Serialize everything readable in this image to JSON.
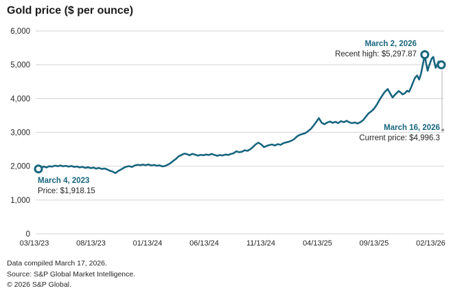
{
  "title": "Gold price ($ per ounce)",
  "colors": {
    "line": "#17657E",
    "accent_text": "#17657E",
    "text": "#231F20",
    "grid": "#D9D9D9",
    "leader": "#C7C7C7",
    "leader_dot": "#9B9B9B",
    "background": "#FFFFFF"
  },
  "annotations": {
    "start": {
      "date": "March 4, 2023",
      "line": "Price: $1,918.15"
    },
    "high": {
      "date": "March 2, 2026",
      "line": "Recent high: $5,297.87"
    },
    "current": {
      "date": "March 16, 2026",
      "line": "Current price: $4,996.3"
    }
  },
  "footer": {
    "compiled": "Data compiled March 17, 2026.",
    "source": "Source: S&P Global Market Intelligence.",
    "copyright": "© 2026 S&P Global."
  },
  "chart_data": {
    "type": "line",
    "title": "Gold price ($ per ounce)",
    "ylim": [
      0,
      6000
    ],
    "grid": "horizontal",
    "y_ticks": [
      {
        "v": 0,
        "label": "0"
      },
      {
        "v": 1000,
        "label": "1,000"
      },
      {
        "v": 2000,
        "label": "2,000"
      },
      {
        "v": 3000,
        "label": "3,000"
      },
      {
        "v": 4000,
        "label": "4,000"
      },
      {
        "v": 5000,
        "label": "5,000"
      },
      {
        "v": 6000,
        "label": "6,000"
      }
    ],
    "x_ticks": [
      "03/13/23",
      "08/13/23",
      "01/13/24",
      "06/13/24",
      "11/13/24",
      "04/13/25",
      "09/13/25",
      "02/13/26"
    ],
    "markers": [
      {
        "name": "start",
        "t": 0.0,
        "v": 1918.15
      },
      {
        "name": "recent-high",
        "t": 0.959,
        "v": 5297.87
      },
      {
        "name": "current",
        "t": 1.0,
        "v": 4996.3
      }
    ],
    "series": [
      {
        "name": "Gold price",
        "points": [
          [
            0.0,
            1918.15
          ],
          [
            0.007,
            1968
          ],
          [
            0.014,
            1990
          ],
          [
            0.02,
            1962
          ],
          [
            0.027,
            2000
          ],
          [
            0.034,
            1988
          ],
          [
            0.041,
            2015
          ],
          [
            0.048,
            2000
          ],
          [
            0.055,
            2022
          ],
          [
            0.061,
            1996
          ],
          [
            0.068,
            2012
          ],
          [
            0.075,
            1988
          ],
          [
            0.082,
            2006
          ],
          [
            0.089,
            1978
          ],
          [
            0.096,
            1992
          ],
          [
            0.102,
            1962
          ],
          [
            0.109,
            1982
          ],
          [
            0.116,
            1948
          ],
          [
            0.123,
            1968
          ],
          [
            0.13,
            1942
          ],
          [
            0.137,
            1958
          ],
          [
            0.143,
            1928
          ],
          [
            0.15,
            1948
          ],
          [
            0.157,
            1918
          ],
          [
            0.164,
            1932
          ],
          [
            0.171,
            1902
          ],
          [
            0.177,
            1868
          ],
          [
            0.184,
            1840
          ],
          [
            0.191,
            1795
          ],
          [
            0.198,
            1855
          ],
          [
            0.205,
            1902
          ],
          [
            0.212,
            1952
          ],
          [
            0.218,
            1986
          ],
          [
            0.225,
            2002
          ],
          [
            0.232,
            1976
          ],
          [
            0.239,
            2022
          ],
          [
            0.246,
            2042
          ],
          [
            0.253,
            2030
          ],
          [
            0.259,
            2046
          ],
          [
            0.266,
            2030
          ],
          [
            0.273,
            2052
          ],
          [
            0.28,
            2022
          ],
          [
            0.287,
            2036
          ],
          [
            0.294,
            2012
          ],
          [
            0.3,
            2026
          ],
          [
            0.307,
            1996
          ],
          [
            0.314,
            2006
          ],
          [
            0.321,
            2042
          ],
          [
            0.328,
            2092
          ],
          [
            0.334,
            2152
          ],
          [
            0.341,
            2212
          ],
          [
            0.348,
            2292
          ],
          [
            0.355,
            2332
          ],
          [
            0.362,
            2372
          ],
          [
            0.369,
            2356
          ],
          [
            0.375,
            2322
          ],
          [
            0.382,
            2366
          ],
          [
            0.389,
            2342
          ],
          [
            0.396,
            2312
          ],
          [
            0.403,
            2336
          ],
          [
            0.41,
            2322
          ],
          [
            0.416,
            2346
          ],
          [
            0.423,
            2330
          ],
          [
            0.43,
            2362
          ],
          [
            0.437,
            2332
          ],
          [
            0.444,
            2306
          ],
          [
            0.45,
            2330
          ],
          [
            0.457,
            2316
          ],
          [
            0.464,
            2346
          ],
          [
            0.471,
            2330
          ],
          [
            0.478,
            2362
          ],
          [
            0.485,
            2386
          ],
          [
            0.491,
            2440
          ],
          [
            0.498,
            2412
          ],
          [
            0.505,
            2426
          ],
          [
            0.512,
            2472
          ],
          [
            0.519,
            2452
          ],
          [
            0.526,
            2502
          ],
          [
            0.532,
            2562
          ],
          [
            0.539,
            2642
          ],
          [
            0.546,
            2696
          ],
          [
            0.553,
            2642
          ],
          [
            0.56,
            2562
          ],
          [
            0.567,
            2602
          ],
          [
            0.573,
            2626
          ],
          [
            0.58,
            2642
          ],
          [
            0.587,
            2612
          ],
          [
            0.594,
            2652
          ],
          [
            0.601,
            2632
          ],
          [
            0.608,
            2682
          ],
          [
            0.614,
            2702
          ],
          [
            0.621,
            2722
          ],
          [
            0.628,
            2752
          ],
          [
            0.635,
            2802
          ],
          [
            0.642,
            2882
          ],
          [
            0.648,
            2922
          ],
          [
            0.655,
            2952
          ],
          [
            0.662,
            2976
          ],
          [
            0.669,
            3032
          ],
          [
            0.676,
            3102
          ],
          [
            0.683,
            3202
          ],
          [
            0.689,
            3302
          ],
          [
            0.696,
            3422
          ],
          [
            0.703,
            3282
          ],
          [
            0.71,
            3242
          ],
          [
            0.717,
            3292
          ],
          [
            0.724,
            3322
          ],
          [
            0.73,
            3282
          ],
          [
            0.737,
            3312
          ],
          [
            0.744,
            3272
          ],
          [
            0.751,
            3332
          ],
          [
            0.758,
            3302
          ],
          [
            0.765,
            3342
          ],
          [
            0.771,
            3302
          ],
          [
            0.778,
            3272
          ],
          [
            0.785,
            3292
          ],
          [
            0.792,
            3262
          ],
          [
            0.799,
            3302
          ],
          [
            0.806,
            3362
          ],
          [
            0.812,
            3452
          ],
          [
            0.819,
            3562
          ],
          [
            0.826,
            3622
          ],
          [
            0.833,
            3702
          ],
          [
            0.84,
            3822
          ],
          [
            0.846,
            3952
          ],
          [
            0.853,
            4082
          ],
          [
            0.86,
            4202
          ],
          [
            0.867,
            4282
          ],
          [
            0.874,
            4132
          ],
          [
            0.879,
            4032
          ],
          [
            0.884,
            4102
          ],
          [
            0.889,
            4162
          ],
          [
            0.894,
            4222
          ],
          [
            0.899,
            4182
          ],
          [
            0.904,
            4122
          ],
          [
            0.91,
            4162
          ],
          [
            0.915,
            4232
          ],
          [
            0.92,
            4202
          ],
          [
            0.925,
            4332
          ],
          [
            0.93,
            4482
          ],
          [
            0.935,
            4622
          ],
          [
            0.94,
            4682
          ],
          [
            0.945,
            4562
          ],
          [
            0.95,
            4752
          ],
          [
            0.954,
            5002
          ],
          [
            0.959,
            5297.87
          ],
          [
            0.962,
            5052
          ],
          [
            0.966,
            4822
          ],
          [
            0.969,
            4952
          ],
          [
            0.973,
            5082
          ],
          [
            0.976,
            5182
          ],
          [
            0.98,
            5232
          ],
          [
            0.983,
            5062
          ],
          [
            0.986,
            4912
          ],
          [
            0.99,
            5002
          ],
          [
            0.993,
            5092
          ],
          [
            0.997,
            5062
          ],
          [
            1.0,
            4996.3
          ]
        ]
      }
    ]
  }
}
